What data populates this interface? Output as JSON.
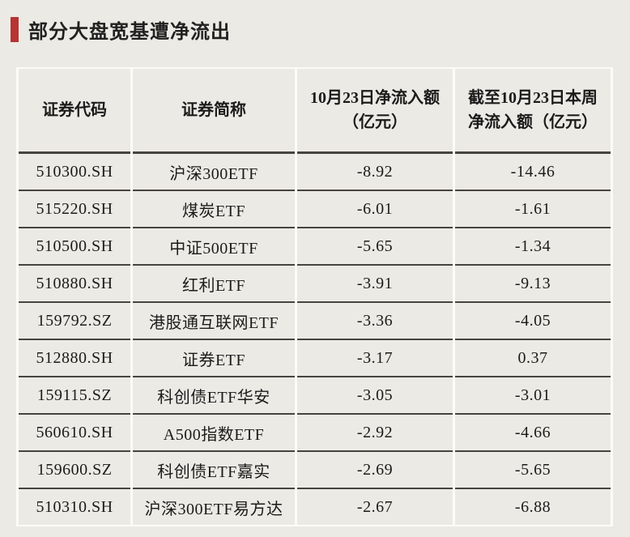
{
  "page": {
    "background_color": "#eceae5",
    "accent_color": "#b63431",
    "divider_color": "#45443f",
    "separator_color": "#fcfbf7"
  },
  "title_bar": {
    "text": "部分大盘宽基遭净流出"
  },
  "table_display": {
    "columns": [
      "证券代码",
      "证券简称",
      "10月23日净流入额\n（亿元）",
      "截至10月23日本周\n净流入额（亿元）"
    ]
  },
  "chart_data": {
    "type": "table",
    "title": "部分大盘宽基遭净流出",
    "unit": "亿元",
    "columns": [
      "证券代码",
      "证券简称",
      "10月23日净流入额（亿元）",
      "截至10月23日本周净流入额（亿元）"
    ],
    "rows": [
      [
        "510300.SH",
        "沪深300ETF",
        -8.92,
        -14.46
      ],
      [
        "515220.SH",
        "煤炭ETF",
        -6.01,
        -1.61
      ],
      [
        "510500.SH",
        "中证500ETF",
        -5.65,
        -1.34
      ],
      [
        "510880.SH",
        "红利ETF",
        -3.91,
        -9.13
      ],
      [
        "159792.SZ",
        "港股通互联网ETF",
        -3.36,
        -4.05
      ],
      [
        "512880.SH",
        "证券ETF",
        -3.17,
        0.37
      ],
      [
        "159115.SZ",
        "科创债ETF华安",
        -3.05,
        -3.01
      ],
      [
        "560610.SH",
        "A500指数ETF",
        -2.92,
        -4.66
      ],
      [
        "159600.SZ",
        "科创债ETF嘉实",
        -2.69,
        -5.65
      ],
      [
        "510310.SH",
        "沪深300ETF易方达",
        -2.67,
        -6.88
      ]
    ]
  }
}
